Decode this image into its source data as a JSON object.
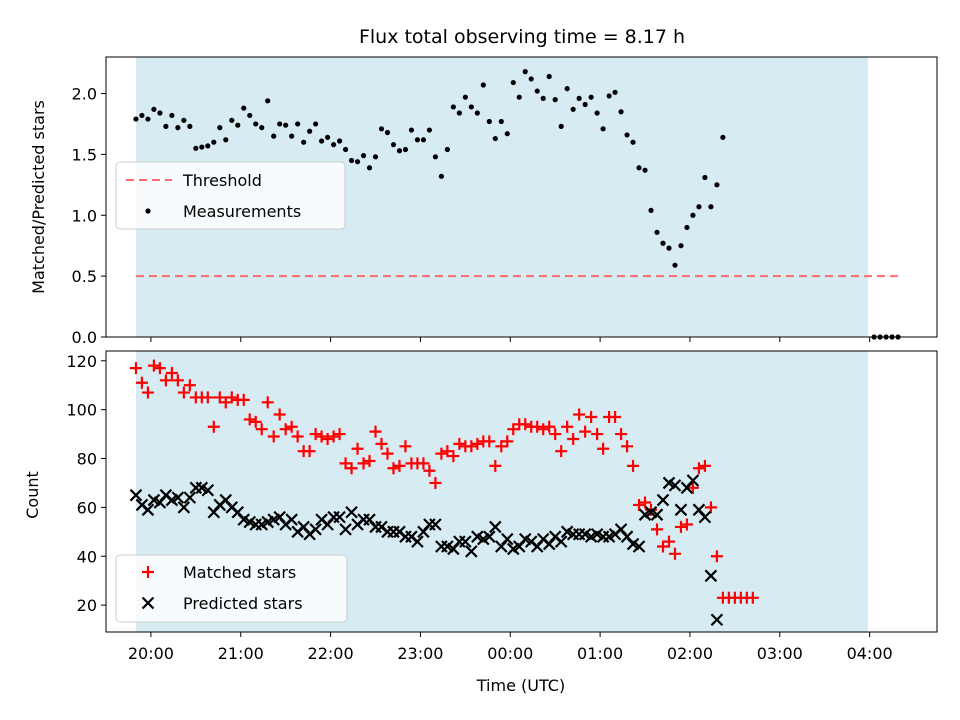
{
  "title": "Flux total observing time = 8.17 h",
  "xlabel": "Time (UTC)",
  "x_ticks": [
    {
      "label": "20:00",
      "h": 20
    },
    {
      "label": "21:00",
      "h": 21
    },
    {
      "label": "22:00",
      "h": 22
    },
    {
      "label": "23:00",
      "h": 23
    },
    {
      "label": "00:00",
      "h": 24
    },
    {
      "label": "01:00",
      "h": 25
    },
    {
      "label": "02:00",
      "h": 26
    },
    {
      "label": "03:00",
      "h": 27
    },
    {
      "label": "04:00",
      "h": 28
    }
  ],
  "colors": {
    "shade": "#add8e6",
    "threshold": "#ff6b6b",
    "matched": "#ff0000",
    "predicted": "#000000",
    "measurement": "#000000"
  },
  "chart_data": [
    {
      "type": "scatter",
      "ylabel": "Matched/Predicted stars",
      "xlim": [
        "19:30",
        "04:45"
      ],
      "ylim": [
        0,
        2.3
      ],
      "yticks": [
        "0.0",
        "0.5",
        "1.0",
        "1.5",
        "2.0"
      ],
      "yticks_values": [
        0,
        0.5,
        1.0,
        1.5,
        2.0
      ],
      "shaded_span": [
        "19:50",
        "03:59"
      ],
      "threshold": {
        "name": "Threshold",
        "value": 0.5,
        "x_range": [
          "19:50",
          "04:20"
        ]
      },
      "legend": [
        "Threshold",
        "Measurements"
      ],
      "legend_position": "center-left",
      "series": [
        {
          "name": "Measurements",
          "marker": "dot",
          "points": [
            [
              "19:50",
              1.79
            ],
            [
              "19:54",
              1.82
            ],
            [
              "19:58",
              1.79
            ],
            [
              "20:02",
              1.87
            ],
            [
              "20:06",
              1.84
            ],
            [
              "20:10",
              1.73
            ],
            [
              "20:14",
              1.82
            ],
            [
              "20:18",
              1.72
            ],
            [
              "20:22",
              1.78
            ],
            [
              "20:26",
              1.73
            ],
            [
              "20:30",
              1.55
            ],
            [
              "20:34",
              1.56
            ],
            [
              "20:38",
              1.57
            ],
            [
              "20:42",
              1.6
            ],
            [
              "20:46",
              1.72
            ],
            [
              "20:50",
              1.62
            ],
            [
              "20:54",
              1.78
            ],
            [
              "20:58",
              1.74
            ],
            [
              "21:02",
              1.88
            ],
            [
              "21:06",
              1.82
            ],
            [
              "21:10",
              1.75
            ],
            [
              "21:14",
              1.72
            ],
            [
              "21:18",
              1.94
            ],
            [
              "21:22",
              1.65
            ],
            [
              "21:26",
              1.75
            ],
            [
              "21:30",
              1.74
            ],
            [
              "21:34",
              1.65
            ],
            [
              "21:38",
              1.75
            ],
            [
              "21:42",
              1.6
            ],
            [
              "21:46",
              1.69
            ],
            [
              "21:50",
              1.75
            ],
            [
              "21:54",
              1.61
            ],
            [
              "21:58",
              1.64
            ],
            [
              "22:02",
              1.58
            ],
            [
              "22:06",
              1.61
            ],
            [
              "22:10",
              1.54
            ],
            [
              "22:14",
              1.45
            ],
            [
              "22:18",
              1.44
            ],
            [
              "22:22",
              1.49
            ],
            [
              "22:26",
              1.39
            ],
            [
              "22:30",
              1.48
            ],
            [
              "22:34",
              1.71
            ],
            [
              "22:38",
              1.68
            ],
            [
              "22:42",
              1.58
            ],
            [
              "22:46",
              1.53
            ],
            [
              "22:50",
              1.54
            ],
            [
              "22:54",
              1.7
            ],
            [
              "22:58",
              1.62
            ],
            [
              "23:02",
              1.62
            ],
            [
              "23:06",
              1.7
            ],
            [
              "23:10",
              1.48
            ],
            [
              "23:14",
              1.32
            ],
            [
              "23:18",
              1.54
            ],
            [
              "23:22",
              1.89
            ],
            [
              "23:26",
              1.84
            ],
            [
              "23:30",
              1.97
            ],
            [
              "23:34",
              1.89
            ],
            [
              "23:38",
              1.84
            ],
            [
              "23:42",
              2.07
            ],
            [
              "23:46",
              1.77
            ],
            [
              "23:50",
              1.63
            ],
            [
              "23:54",
              1.77
            ],
            [
              "23:58",
              1.67
            ],
            [
              "00:02",
              2.09
            ],
            [
              "00:06",
              1.97
            ],
            [
              "00:10",
              2.18
            ],
            [
              "00:14",
              2.12
            ],
            [
              "00:18",
              2.02
            ],
            [
              "00:22",
              1.96
            ],
            [
              "00:26",
              2.14
            ],
            [
              "00:30",
              1.95
            ],
            [
              "00:34",
              1.73
            ],
            [
              "00:38",
              2.04
            ],
            [
              "00:42",
              1.87
            ],
            [
              "00:46",
              1.96
            ],
            [
              "00:50",
              1.91
            ],
            [
              "00:54",
              1.97
            ],
            [
              "00:58",
              1.84
            ],
            [
              "01:02",
              1.71
            ],
            [
              "01:06",
              1.98
            ],
            [
              "01:10",
              2.01
            ],
            [
              "01:14",
              1.85
            ],
            [
              "01:18",
              1.66
            ],
            [
              "01:22",
              1.6
            ],
            [
              "01:26",
              1.39
            ],
            [
              "01:30",
              1.37
            ],
            [
              "01:34",
              1.04
            ],
            [
              "01:38",
              0.86
            ],
            [
              "01:42",
              0.77
            ],
            [
              "01:46",
              0.73
            ],
            [
              "01:50",
              0.59
            ],
            [
              "01:54",
              0.75
            ],
            [
              "01:58",
              0.9
            ],
            [
              "02:02",
              1.0
            ],
            [
              "02:06",
              1.07
            ],
            [
              "02:10",
              1.31
            ],
            [
              "02:14",
              1.07
            ],
            [
              "02:18",
              1.25
            ],
            [
              "02:22",
              1.64
            ]
          ]
        },
        {
          "name": "",
          "marker": "dot",
          "points": [
            [
              "04:03",
              0.0
            ],
            [
              "04:07",
              0.0
            ],
            [
              "04:11",
              0.0
            ],
            [
              "04:15",
              0.0
            ],
            [
              "04:19",
              0.0
            ]
          ]
        }
      ]
    },
    {
      "type": "scatter",
      "ylabel": "Count",
      "xlim": [
        "19:30",
        "04:45"
      ],
      "ylim": [
        9,
        124
      ],
      "yticks": [
        "20",
        "40",
        "60",
        "80",
        "100",
        "120"
      ],
      "yticks_values": [
        20,
        40,
        60,
        80,
        100,
        120
      ],
      "shaded_span": [
        "19:50",
        "03:59"
      ],
      "legend": [
        "Matched stars",
        "Predicted stars"
      ],
      "legend_position": "lower-left",
      "series": [
        {
          "name": "Matched stars",
          "marker": "plus",
          "values": [
            117,
            111,
            107,
            118,
            117,
            112,
            115,
            112,
            107,
            110,
            105,
            105,
            105,
            93,
            105,
            103,
            105,
            104,
            104,
            96,
            95,
            92,
            103,
            89,
            98,
            92,
            93,
            89,
            83,
            83,
            90,
            89,
            88,
            89,
            90,
            78,
            76,
            84,
            78,
            79,
            91,
            86,
            82,
            76,
            77,
            85,
            78,
            78,
            78,
            75,
            70,
            82,
            83,
            81,
            86,
            85,
            85,
            86,
            87,
            87,
            77,
            85,
            87,
            92,
            94,
            94,
            93,
            93,
            92,
            93,
            90,
            83,
            93,
            88,
            98,
            91,
            97,
            90,
            84,
            97,
            97,
            90,
            85,
            77,
            61,
            62,
            59,
            51,
            44,
            46,
            41,
            52,
            53,
            68,
            76,
            77,
            60,
            40,
            23,
            23,
            23,
            23,
            23,
            23
          ]
        },
        {
          "name": "Predicted stars",
          "marker": "x",
          "values": [
            65,
            61,
            59,
            63,
            62,
            65,
            63,
            64,
            60,
            64,
            68,
            68,
            67,
            58,
            61,
            63,
            60,
            58,
            55,
            54,
            53,
            53,
            54,
            55,
            56,
            53,
            55,
            50,
            52,
            49,
            51,
            55,
            53,
            56,
            56,
            51,
            58,
            53,
            55,
            55,
            52,
            52,
            50,
            50,
            50,
            48,
            48,
            46,
            50,
            53,
            53,
            44,
            44,
            43,
            46,
            46,
            42,
            48,
            47,
            48,
            52,
            44,
            47,
            43,
            44,
            47,
            46,
            44,
            47,
            45,
            48,
            46,
            50,
            49,
            49,
            49,
            48,
            49,
            48,
            48,
            49,
            51,
            48,
            45,
            44,
            57,
            58,
            57,
            63,
            70,
            69,
            59,
            68,
            71,
            59,
            56,
            32,
            14
          ]
        }
      ]
    }
  ]
}
